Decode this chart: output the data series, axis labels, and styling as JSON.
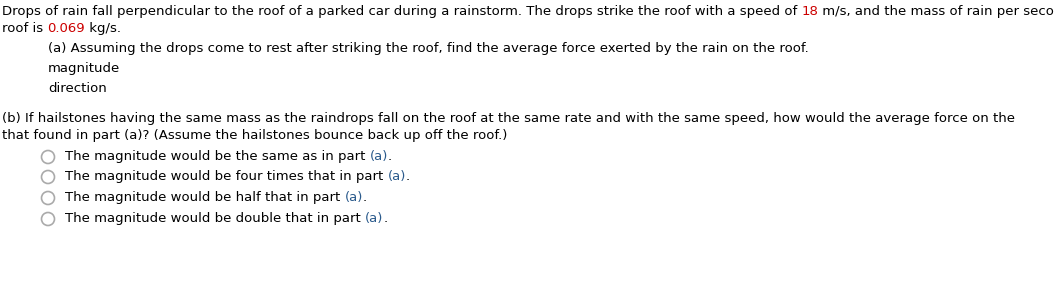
{
  "bg_color": "#ffffff",
  "text_color": "#000000",
  "red_color": "#cc0000",
  "blue_color": "#2a5a8c",
  "figsize": [
    10.55,
    2.86
  ],
  "dpi": 100,
  "font_size": 9.5,
  "line1_parts": [
    {
      "text": "Drops of rain fall perpendicular to the roof of a parked car during a rainstorm. The drops strike the roof with a speed of ",
      "color": "#000000"
    },
    {
      "text": "18",
      "color": "#cc0000"
    },
    {
      "text": " m/s, and the mass of rain per secon",
      "color": "#000000"
    }
  ],
  "line2_parts": [
    {
      "text": "roof is ",
      "color": "#000000"
    },
    {
      "text": "0.069",
      "color": "#cc0000"
    },
    {
      "text": " kg/s.",
      "color": "#000000"
    }
  ],
  "part_a_text": "(a) Assuming the drops come to rest after striking the roof, find the average force exerted by the rain on the roof.",
  "magnitude_text": "magnitude",
  "direction_text": "direction",
  "part_b_line1": "(b) If hailstones having the same mass as the raindrops fall on the roof at the same rate and with the same speed, how would the average force on the",
  "part_b_line2": "that found in part (a)? (Assume the hailstones bounce back up off the roof.)",
  "radio_options": [
    [
      {
        "text": "The magnitude would be the same as in part ",
        "color": "#000000"
      },
      {
        "text": "(a)",
        "color": "#2a5a8c"
      },
      {
        "text": ".",
        "color": "#000000"
      }
    ],
    [
      {
        "text": "The magnitude would be four times that in part ",
        "color": "#000000"
      },
      {
        "text": "(a)",
        "color": "#2a5a8c"
      },
      {
        "text": ".",
        "color": "#000000"
      }
    ],
    [
      {
        "text": "The magnitude would be half that in part ",
        "color": "#000000"
      },
      {
        "text": "(a)",
        "color": "#2a5a8c"
      },
      {
        "text": ".",
        "color": "#000000"
      }
    ],
    [
      {
        "text": "The magnitude would be double that in part ",
        "color": "#000000"
      },
      {
        "text": "(a)",
        "color": "#2a5a8c"
      },
      {
        "text": ".",
        "color": "#000000"
      }
    ]
  ]
}
